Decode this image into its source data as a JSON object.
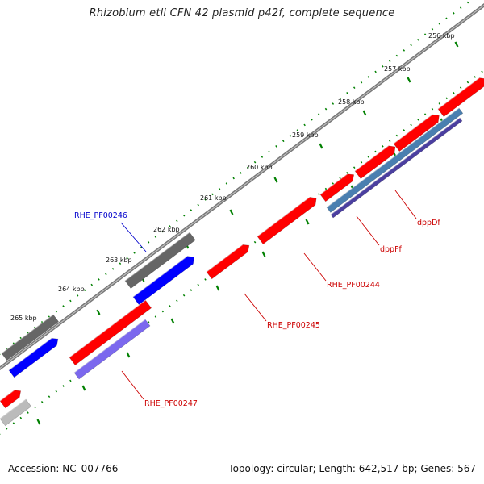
{
  "title": "Rhizobium etli CFN 42 plasmid p42f, complete sequence",
  "footer": {
    "accession": "Accession: NC_007766",
    "summary": "Topology: circular; Length: 642,517 bp; Genes: 567"
  },
  "colors": {
    "backbone": "#888888",
    "forward_cds": "#ff0000",
    "reverse_cds": "#ff0000",
    "grey_feature": "#666666",
    "blue_feature": "#0000ff",
    "purple_feature": "#7b68ee",
    "steelblue_feature": "#4a7fb0",
    "navy_feature": "#4b3fa0",
    "tick": "#008000",
    "label_red": "#cc0000",
    "label_blue": "#0000cc"
  },
  "ticks": [
    "256 kbp",
    "257 kbp",
    "258 kbp",
    "259 kbp",
    "260 kbp",
    "261 kbp",
    "262 kbp",
    "263 kbp",
    "264 kbp",
    "265 kbp"
  ],
  "gene_labels": [
    {
      "name": "RHE_PF00246",
      "color": "blue"
    },
    {
      "name": "dppDf",
      "color": "red"
    },
    {
      "name": "dppFf",
      "color": "red"
    },
    {
      "name": "RHE_PF00244",
      "color": "red"
    },
    {
      "name": "RHE_PF00245",
      "color": "red"
    },
    {
      "name": "RHE_PF00247",
      "color": "red"
    }
  ]
}
